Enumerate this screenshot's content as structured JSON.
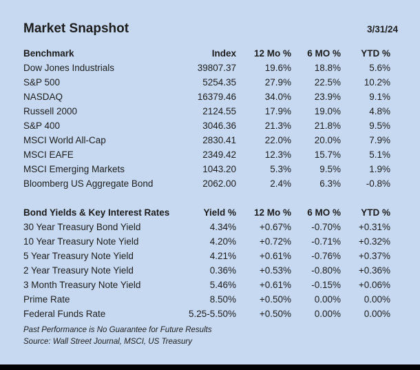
{
  "page": {
    "title": "Market Snapshot",
    "date": "3/31/24"
  },
  "colors": {
    "background": "#c6d9f1",
    "text": "#1c1c1c",
    "bottom_bar": "#000000"
  },
  "benchmarks": {
    "headers": [
      "Benchmark",
      "Index",
      "12 Mo %",
      "6 MO %",
      "YTD %"
    ],
    "rows": [
      {
        "label": "Dow Jones Industrials",
        "values": [
          "39807.37",
          "19.6%",
          "18.8%",
          "5.6%"
        ]
      },
      {
        "label": "S&P 500",
        "values": [
          "5254.35",
          "27.9%",
          "22.5%",
          "10.2%"
        ]
      },
      {
        "label": "NASDAQ",
        "values": [
          "16379.46",
          "34.0%",
          "23.9%",
          "9.1%"
        ]
      },
      {
        "label": "Russell 2000",
        "values": [
          "2124.55",
          "17.9%",
          "19.0%",
          "4.8%"
        ]
      },
      {
        "label": "S&P 400",
        "values": [
          "3046.36",
          "21.3%",
          "21.8%",
          "9.5%"
        ]
      },
      {
        "label": "MSCI World All-Cap",
        "values": [
          "2830.41",
          "22.0%",
          "20.0%",
          "7.9%"
        ]
      },
      {
        "label": "MSCI EAFE",
        "values": [
          "2349.42",
          "12.3%",
          "15.7%",
          "5.1%"
        ]
      },
      {
        "label": "MSCI Emerging Markets",
        "values": [
          "1043.20",
          "5.3%",
          "9.5%",
          "1.9%"
        ]
      },
      {
        "label": "Bloomberg US Aggregate Bond",
        "values": [
          "2062.00",
          "2.4%",
          "6.3%",
          "-0.8%"
        ]
      }
    ]
  },
  "bond_yields": {
    "headers": [
      "Bond Yields & Key Interest Rates",
      "Yield %",
      "12 Mo %",
      "6 MO %",
      "YTD %"
    ],
    "rows": [
      {
        "label": "30 Year Treasury Bond Yield",
        "values": [
          "4.34%",
          "+0.67%",
          "-0.70%",
          "+0.31%"
        ]
      },
      {
        "label": "10 Year Treasury Note Yield",
        "values": [
          "4.20%",
          "+0.72%",
          "-0.71%",
          "+0.32%"
        ]
      },
      {
        "label": "5 Year Treasury Note Yield",
        "values": [
          "4.21%",
          "+0.61%",
          "-0.76%",
          "+0.37%"
        ]
      },
      {
        "label": "2 Year Treasury Note Yield",
        "values": [
          "0.36%",
          "+0.53%",
          "-0.80%",
          "+0.36%"
        ]
      },
      {
        "label": "3 Month Treasury Note Yield",
        "values": [
          "5.46%",
          "+0.61%",
          "-0.15%",
          "+0.06%"
        ]
      },
      {
        "label": "Prime Rate",
        "values": [
          "8.50%",
          "+0.50%",
          "0.00%",
          "0.00%"
        ]
      },
      {
        "label": "Federal Funds Rate",
        "values": [
          "5.25-5.50%",
          "+0.50%",
          "0.00%",
          "0.00%"
        ]
      }
    ]
  },
  "footer": {
    "disclaimer": "Past Performance is No Guarantee for Future Results",
    "source": "Source: Wall Street Journal, MSCI, US Treasury"
  }
}
